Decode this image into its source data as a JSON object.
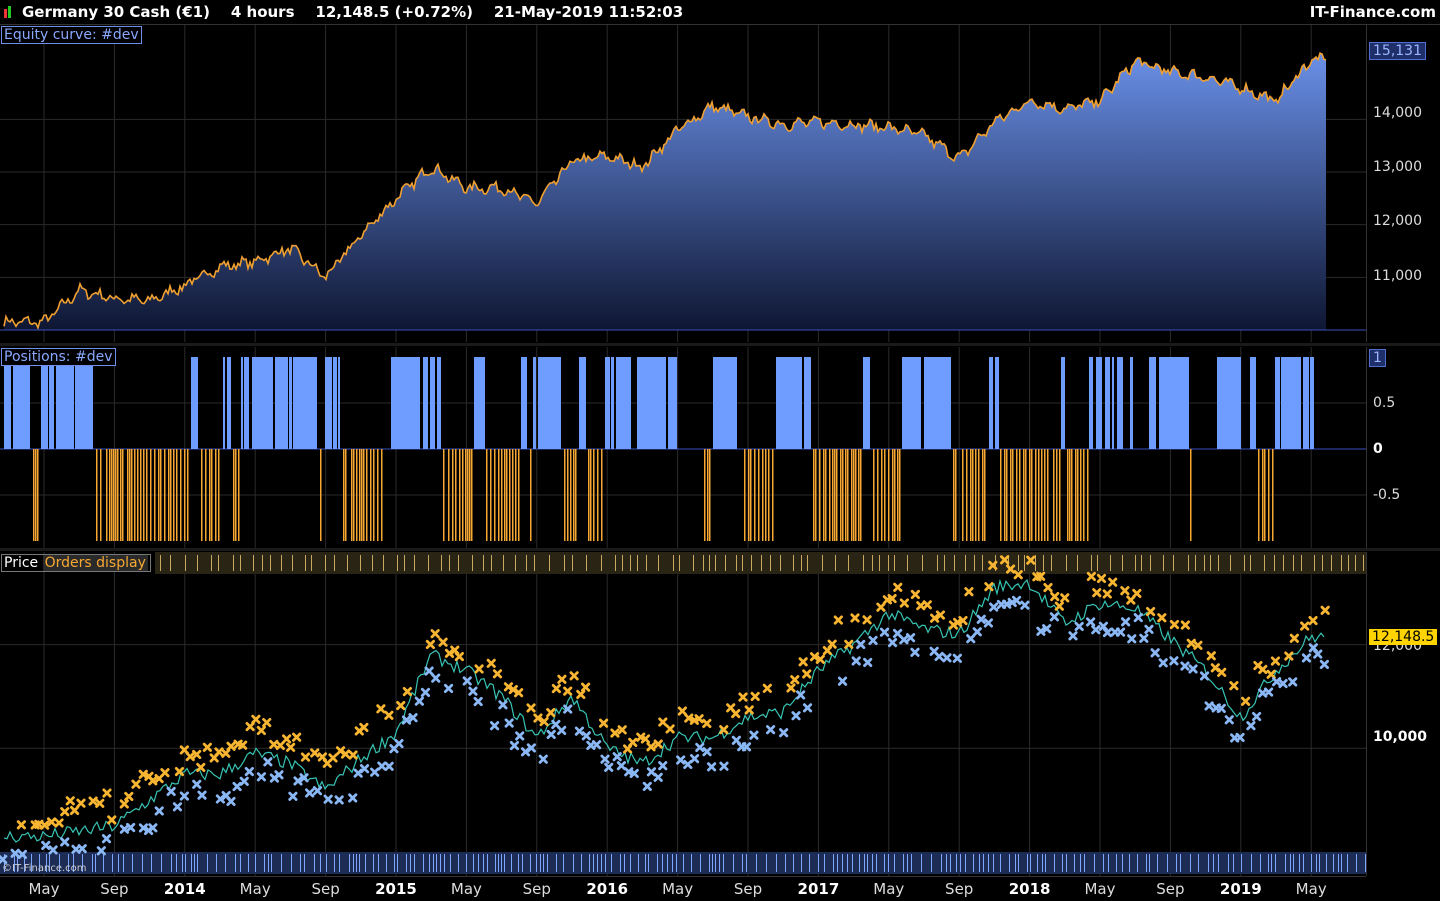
{
  "header": {
    "instrument": "Germany 30 Cash (€1)",
    "timeframe": "4 hours",
    "last_price": "12,148.5 (+0.72%)",
    "datetime": "21-May-2019 11:52:03",
    "brand": "IT-Finance.com"
  },
  "panels": {
    "equity": {
      "label": "Equity curve: #dev",
      "last_value_label": "15,131"
    },
    "positions": {
      "label": "Positions: #dev"
    },
    "price": {
      "label": "Price",
      "orders_label": "Orders display",
      "last_value_label": "12,148.5",
      "watermark": "©IT-Finance.com"
    }
  },
  "colors": {
    "equity_fill_top": "#6a90e8",
    "equity_fill_bottom": "#0e1632",
    "equity_line": "#f0a030",
    "long_bar": "#6f9cff",
    "short_bar": "#f7a833",
    "buy_marker": "#f7b531",
    "sell_marker": "#8bb8f5",
    "price_line": "#37c4b4",
    "price_box": "#ffd400"
  },
  "chart_data": [
    {
      "type": "area",
      "name": "Equity curve: #dev",
      "x": [
        "2013-05",
        "2013-07",
        "2013-09",
        "2013-11",
        "2014-01",
        "2014-03",
        "2014-05",
        "2014-07",
        "2014-09",
        "2014-11",
        "2015-01",
        "2015-03",
        "2015-05",
        "2015-07",
        "2015-09",
        "2015-11",
        "2016-01",
        "2016-03",
        "2016-05",
        "2016-07",
        "2016-09",
        "2016-11",
        "2017-01",
        "2017-03",
        "2017-05",
        "2017-07",
        "2017-09",
        "2017-11",
        "2018-01",
        "2018-03",
        "2018-05",
        "2018-07",
        "2018-09",
        "2018-11",
        "2019-01",
        "2019-03",
        "2019-05"
      ],
      "values": [
        10150,
        10750,
        10600,
        10550,
        10850,
        11200,
        11300,
        11550,
        11000,
        11800,
        12500,
        13100,
        12700,
        12700,
        12400,
        13200,
        13300,
        13100,
        13800,
        14250,
        14050,
        13900,
        13950,
        13900,
        13850,
        13700,
        13250,
        13950,
        14350,
        14200,
        14350,
        15100,
        14900,
        14800,
        14600,
        14350,
        15131
      ],
      "yticks": [
        "11,000",
        "12,000",
        "13,000",
        "14,000"
      ],
      "ylim": [
        10000,
        15450
      ]
    },
    {
      "type": "bar",
      "name": "Positions: #dev",
      "description_values": {
        "long": 1,
        "flat": 0,
        "short": -1
      },
      "yticks": [
        "1",
        "0.5",
        "0",
        "-0.5"
      ],
      "ylim": [
        -1,
        1
      ]
    },
    {
      "type": "scatter",
      "name": "Price",
      "x": [
        "2013-05",
        "2013-07",
        "2013-09",
        "2013-11",
        "2014-01",
        "2014-03",
        "2014-05",
        "2014-07",
        "2014-09",
        "2014-11",
        "2015-01",
        "2015-03",
        "2015-05",
        "2015-07",
        "2015-09",
        "2015-11",
        "2016-01",
        "2016-03",
        "2016-05",
        "2016-07",
        "2016-09",
        "2016-11",
        "2017-01",
        "2017-03",
        "2017-05",
        "2017-07",
        "2017-09",
        "2017-11",
        "2018-01",
        "2018-03",
        "2018-05",
        "2018-07",
        "2018-09",
        "2018-11",
        "2019-01",
        "2019-03",
        "2019-05"
      ],
      "values": [
        8300,
        8400,
        8500,
        9000,
        9500,
        9500,
        9900,
        9700,
        9200,
        9800,
        10300,
        11800,
        11500,
        11000,
        10200,
        11000,
        10000,
        9700,
        10200,
        10200,
        10600,
        10700,
        11500,
        12000,
        12600,
        12300,
        12200,
        13100,
        13200,
        12400,
        12800,
        12700,
        12100,
        11500,
        10600,
        11500,
        12148.5
      ],
      "yticks": [
        "10,000",
        "12,000"
      ],
      "ylim": [
        8000,
        13400
      ]
    }
  ],
  "x_axis": {
    "labels": [
      {
        "text": "May",
        "bold": false
      },
      {
        "text": "Sep",
        "bold": false
      },
      {
        "text": "2014",
        "bold": true
      },
      {
        "text": "May",
        "bold": false
      },
      {
        "text": "Sep",
        "bold": false
      },
      {
        "text": "2015",
        "bold": true
      },
      {
        "text": "May",
        "bold": false
      },
      {
        "text": "Sep",
        "bold": false
      },
      {
        "text": "2016",
        "bold": true
      },
      {
        "text": "May",
        "bold": false
      },
      {
        "text": "Sep",
        "bold": false
      },
      {
        "text": "2017",
        "bold": true
      },
      {
        "text": "May",
        "bold": false
      },
      {
        "text": "Sep",
        "bold": false
      },
      {
        "text": "2018",
        "bold": true
      },
      {
        "text": "May",
        "bold": false
      },
      {
        "text": "Sep",
        "bold": false
      },
      {
        "text": "2019",
        "bold": true
      },
      {
        "text": "May",
        "bold": false
      }
    ]
  }
}
